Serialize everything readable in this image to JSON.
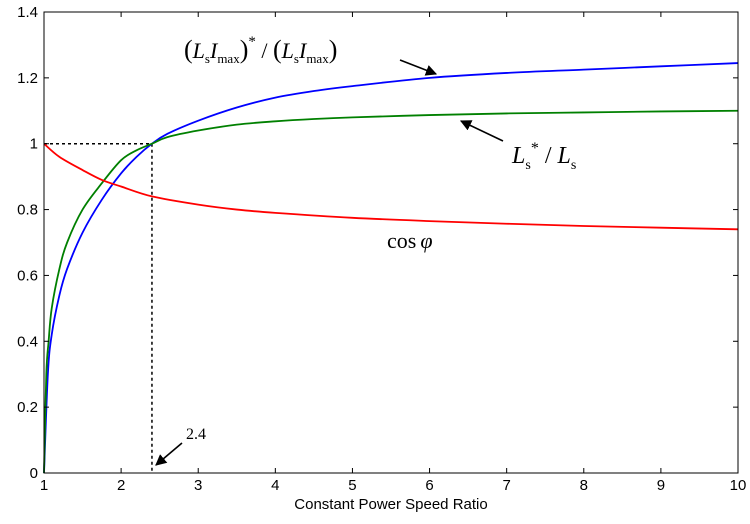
{
  "chart_data": {
    "type": "line",
    "xlabel": "Constant Power Speed Ratio",
    "ylabel": "",
    "xlim": [
      1,
      10
    ],
    "ylim": [
      0,
      1.4
    ],
    "xticks": [
      "1",
      "2",
      "3",
      "4",
      "5",
      "6",
      "7",
      "8",
      "9",
      "10"
    ],
    "yticks": [
      "0",
      "0.2",
      "0.4",
      "0.6",
      "0.8",
      "1",
      "1.2",
      "1.4"
    ],
    "grid": false,
    "series": [
      {
        "name": "(LsImax)*/(LsImax)",
        "color": "#0000ff",
        "x": [
          1,
          1.05,
          1.1,
          1.2,
          1.3,
          1.5,
          1.75,
          2,
          2.2,
          2.4,
          2.6,
          3,
          3.5,
          4,
          4.5,
          5,
          6,
          7,
          8,
          9,
          10
        ],
        "y": [
          0.0,
          0.3,
          0.42,
          0.54,
          0.62,
          0.73,
          0.83,
          0.91,
          0.96,
          1.0,
          1.03,
          1.07,
          1.11,
          1.14,
          1.16,
          1.175,
          1.2,
          1.215,
          1.225,
          1.235,
          1.245
        ]
      },
      {
        "name": "Ls*/Ls",
        "color": "#008000",
        "x": [
          1,
          1.03,
          1.06,
          1.1,
          1.2,
          1.3,
          1.5,
          1.75,
          2,
          2.2,
          2.4,
          2.6,
          3,
          3.5,
          4,
          4.5,
          5,
          6,
          7,
          8,
          9,
          10
        ],
        "y": [
          0.0,
          0.3,
          0.4,
          0.5,
          0.62,
          0.7,
          0.8,
          0.88,
          0.95,
          0.98,
          1.0,
          1.02,
          1.04,
          1.058,
          1.068,
          1.075,
          1.08,
          1.087,
          1.092,
          1.095,
          1.098,
          1.1
        ]
      },
      {
        "name": "cos φ",
        "color": "#ff0000",
        "x": [
          1,
          1.2,
          1.5,
          1.75,
          2,
          2.4,
          3,
          3.5,
          4,
          5,
          6,
          7,
          8,
          9,
          10
        ],
        "y": [
          1.0,
          0.96,
          0.92,
          0.89,
          0.87,
          0.84,
          0.815,
          0.8,
          0.79,
          0.775,
          0.765,
          0.757,
          0.75,
          0.745,
          0.74
        ]
      }
    ],
    "reference": {
      "x": 2.4,
      "y": 1.0,
      "label": "2.4"
    },
    "annotations": {
      "blue_label": "(LsImax)*/(LsImax)",
      "green_label": "Ls*/Ls",
      "red_label": "cos φ"
    },
    "label_parts": {
      "L": "L",
      "I": "I",
      "s": "s",
      "max": "max",
      "star": "*",
      "slash": " / ",
      "open_paren": "(",
      "close_paren": ")",
      "cos": "cos",
      "phi": "φ"
    }
  }
}
